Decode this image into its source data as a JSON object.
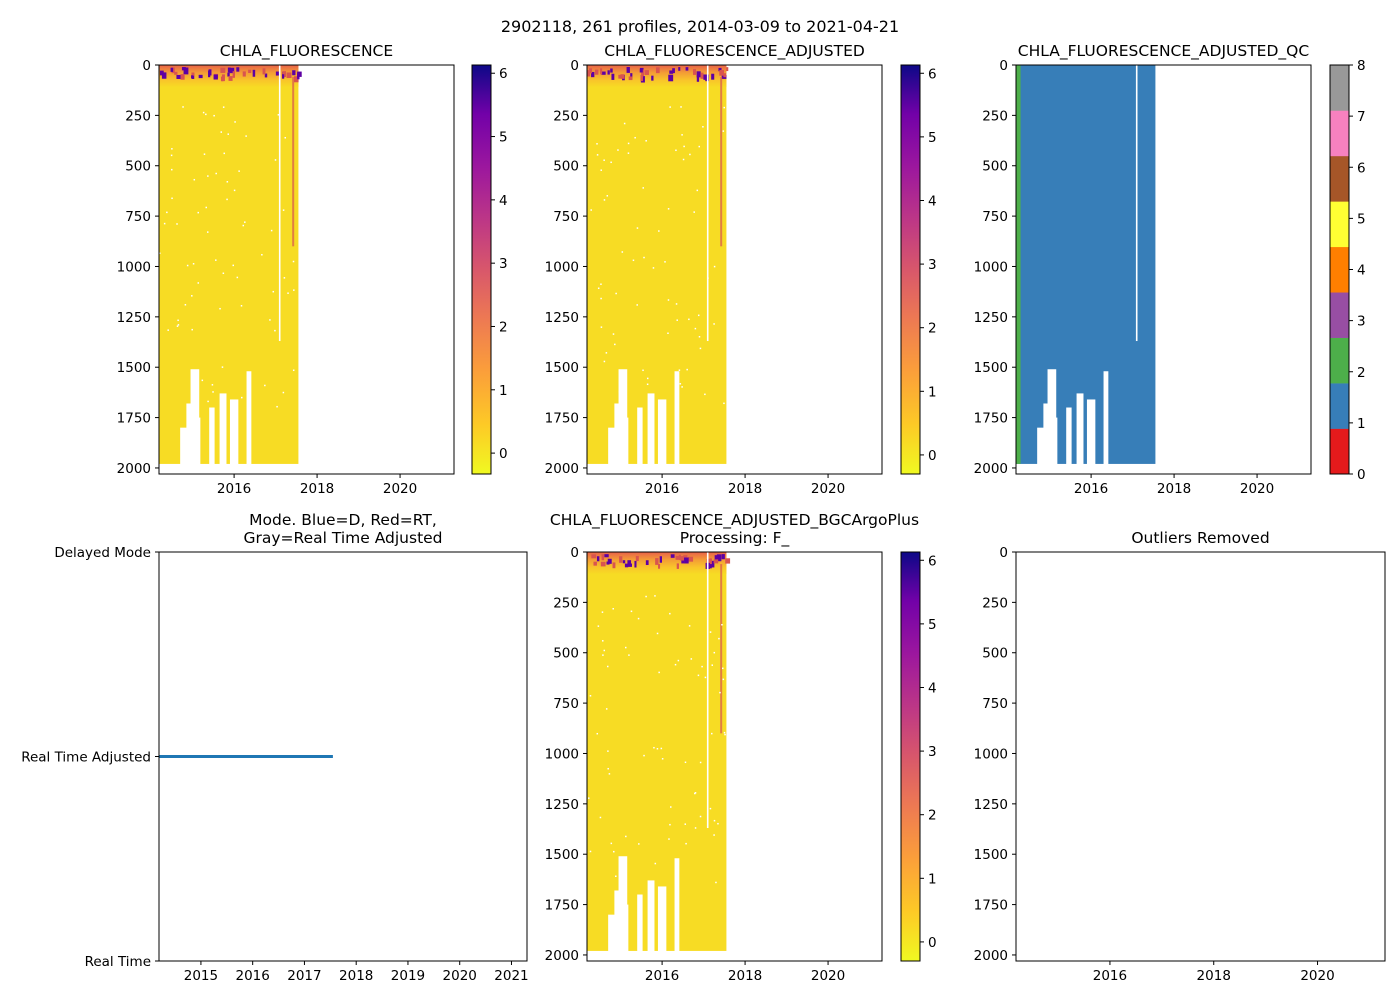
{
  "suptitle": "2902118, 261 profiles, 2014-03-09 to 2021-04-21",
  "colors": {
    "data_fill": "#f7dc24",
    "surface_orange": "#f39d35",
    "surface_red": "#d9544f",
    "surface_purple": "#5e00a3",
    "qc_blue": "#377eb8",
    "qc_green": "#4daf4a",
    "mode_line": "#1f77b4"
  },
  "chart_data": [
    {
      "id": "p1",
      "type": "heatmap",
      "title": "CHLA_FLUORESCENCE",
      "x_ticks": [
        "2016",
        "2018",
        "2020"
      ],
      "x_tick_values": [
        2016,
        2018,
        2020
      ],
      "xlim": [
        2014.19,
        2021.3
      ],
      "data_x_range": [
        2014.19,
        2017.55
      ],
      "y_ticks": [
        "0",
        "250",
        "500",
        "750",
        "1000",
        "1250",
        "1500",
        "1750",
        "2000"
      ],
      "y_tick_values": [
        0,
        250,
        500,
        750,
        1000,
        1250,
        1500,
        1750,
        2000
      ],
      "ylim": [
        2030,
        0
      ],
      "colorbar": {
        "colormap": "plasma_r",
        "ticks": [
          "0",
          "1",
          "2",
          "3",
          "4",
          "5",
          "6"
        ],
        "tick_values": [
          0,
          1,
          2,
          3,
          4,
          5,
          6
        ],
        "range": [
          -0.33,
          6.13
        ]
      }
    },
    {
      "id": "p2",
      "type": "heatmap",
      "title": "CHLA_FLUORESCENCE_ADJUSTED",
      "x_ticks": [
        "2016",
        "2018",
        "2020"
      ],
      "x_tick_values": [
        2016,
        2018,
        2020
      ],
      "xlim": [
        2014.19,
        2021.3
      ],
      "data_x_range": [
        2014.19,
        2017.55
      ],
      "y_ticks": [
        "0",
        "250",
        "500",
        "750",
        "1000",
        "1250",
        "1500",
        "1750",
        "2000"
      ],
      "y_tick_values": [
        0,
        250,
        500,
        750,
        1000,
        1250,
        1500,
        1750,
        2000
      ],
      "ylim": [
        2030,
        0
      ],
      "colorbar": {
        "colormap": "plasma_r",
        "ticks": [
          "0",
          "1",
          "2",
          "3",
          "4",
          "5",
          "6"
        ],
        "tick_values": [
          0,
          1,
          2,
          3,
          4,
          5,
          6
        ],
        "range": [
          -0.3,
          6.13
        ]
      }
    },
    {
      "id": "p3",
      "type": "heatmap",
      "title": "CHLA_FLUORESCENCE_ADJUSTED_QC",
      "x_ticks": [
        "2016",
        "2018",
        "2020"
      ],
      "x_tick_values": [
        2016,
        2018,
        2020
      ],
      "xlim": [
        2014.19,
        2021.3
      ],
      "data_x_range": [
        2014.19,
        2017.55
      ],
      "qc2_x_range": [
        2014.19,
        2014.3
      ],
      "y_ticks": [
        "0",
        "250",
        "500",
        "750",
        "1000",
        "1250",
        "1500",
        "1750",
        "2000"
      ],
      "y_tick_values": [
        0,
        250,
        500,
        750,
        1000,
        1250,
        1500,
        1750,
        2000
      ],
      "ylim": [
        2030,
        0
      ],
      "colorbar": {
        "colormap": "qc_categorical",
        "ticks": [
          "0",
          "1",
          "2",
          "3",
          "4",
          "5",
          "6",
          "7",
          "8"
        ],
        "tick_values": [
          0,
          1,
          2,
          3,
          4,
          5,
          6,
          7,
          8
        ],
        "range": [
          0,
          8
        ],
        "segments": [
          "#e41a1c",
          "#377eb8",
          "#4daf4a",
          "#984ea3",
          "#ff7f00",
          "#ffff33",
          "#a65628",
          "#f781bf",
          "#999999"
        ]
      }
    },
    {
      "id": "p4",
      "type": "line",
      "title": "Mode. Blue=D, Red=RT,",
      "title_line2": "Gray=Real Time Adjusted",
      "x_ticks": [
        "2015",
        "2016",
        "2017",
        "2018",
        "2019",
        "2020",
        "2021"
      ],
      "x_tick_values": [
        2015,
        2016,
        2017,
        2018,
        2019,
        2020,
        2021
      ],
      "xlim": [
        2014.19,
        2021.3
      ],
      "y_ticks": [
        "Delayed Mode",
        "Real Time Adjusted",
        "Real Time"
      ],
      "y_tick_values": [
        2,
        1,
        0
      ],
      "ylim": [
        0,
        2
      ],
      "series": [
        {
          "name": "mode",
          "x": [
            2014.19,
            2017.55
          ],
          "y": [
            1,
            1
          ]
        }
      ]
    },
    {
      "id": "p5",
      "type": "heatmap",
      "title": "CHLA_FLUORESCENCE_ADJUSTED_BGCArgoPlus",
      "title_line2": "Processing: F_",
      "x_ticks": [
        "2016",
        "2018",
        "2020"
      ],
      "x_tick_values": [
        2016,
        2018,
        2020
      ],
      "xlim": [
        2014.19,
        2021.3
      ],
      "data_x_range": [
        2014.19,
        2017.55
      ],
      "y_ticks": [
        "0",
        "250",
        "500",
        "750",
        "1000",
        "1250",
        "1500",
        "1750",
        "2000"
      ],
      "y_tick_values": [
        0,
        250,
        500,
        750,
        1000,
        1250,
        1500,
        1750,
        2000
      ],
      "ylim": [
        2030,
        0
      ],
      "colorbar": {
        "colormap": "plasma_r",
        "ticks": [
          "0",
          "1",
          "2",
          "3",
          "4",
          "5",
          "6"
        ],
        "tick_values": [
          0,
          1,
          2,
          3,
          4,
          5,
          6
        ],
        "range": [
          -0.3,
          6.13
        ]
      }
    },
    {
      "id": "p6",
      "type": "scatter",
      "title": "Outliers Removed",
      "x_ticks": [
        "2016",
        "2018",
        "2020"
      ],
      "x_tick_values": [
        2016,
        2018,
        2020
      ],
      "xlim": [
        2014.19,
        2021.3
      ],
      "y_ticks": [
        "0",
        "250",
        "500",
        "750",
        "1000",
        "1250",
        "1500",
        "1750",
        "2000"
      ],
      "y_tick_values": [
        0,
        250,
        500,
        750,
        1000,
        1250,
        1500,
        1750,
        2000
      ],
      "ylim": [
        2030,
        0
      ],
      "points": []
    }
  ]
}
